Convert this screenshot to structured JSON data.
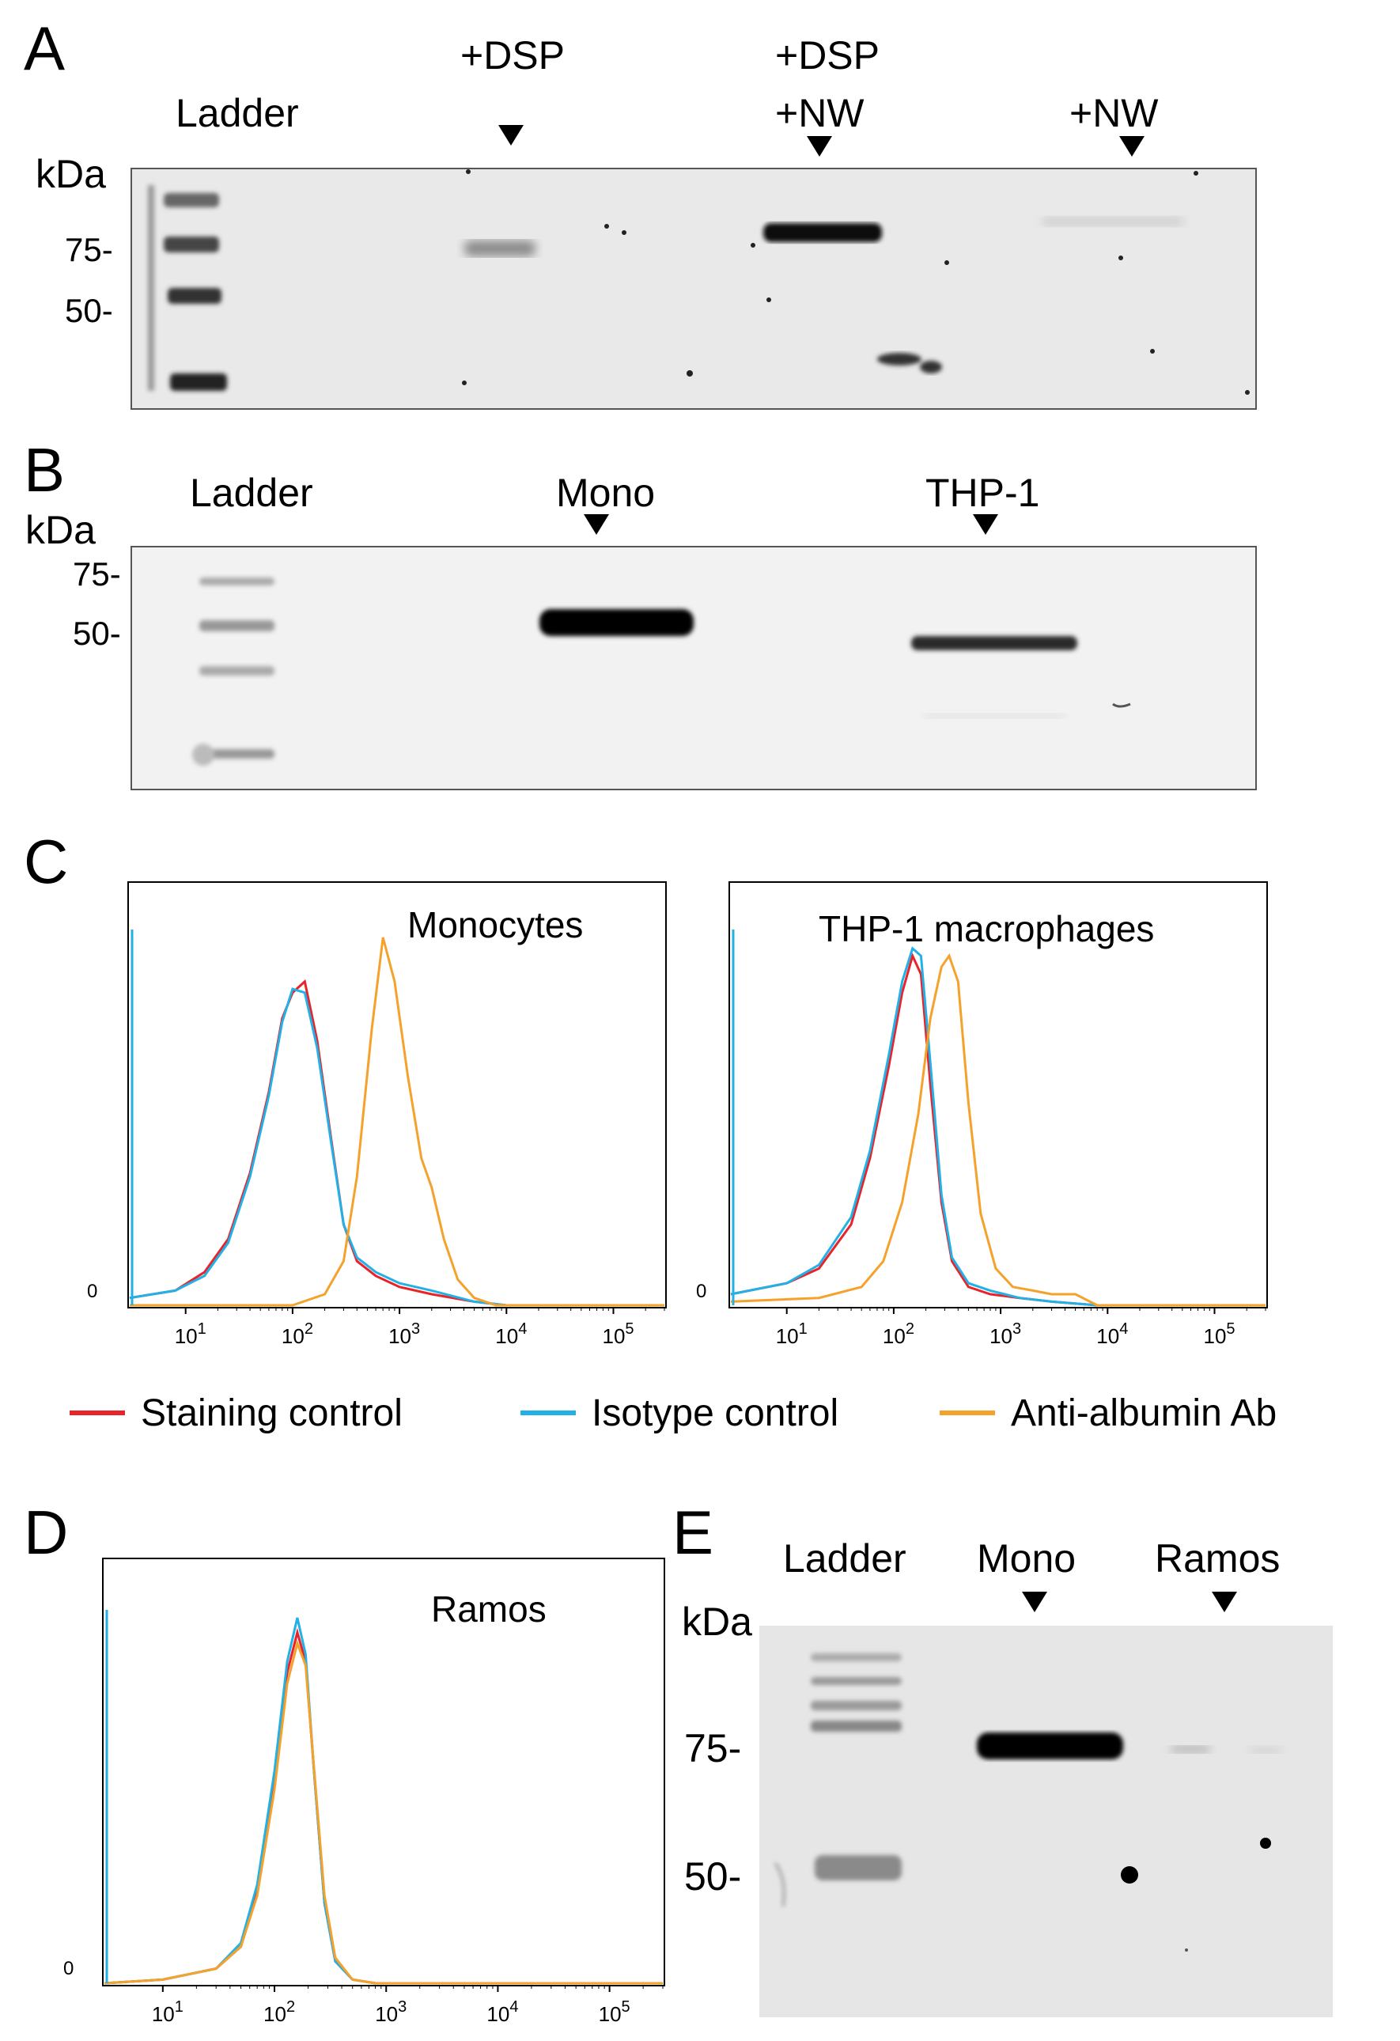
{
  "panelA": {
    "label": "A",
    "unit": "kDa",
    "markers": [
      "75-",
      "50-"
    ],
    "lanes": {
      "ladder": "Ladder",
      "dsp": "+DSP",
      "dsp_nw_1": "+DSP",
      "dsp_nw_2": "+NW",
      "nw": "+NW"
    }
  },
  "panelB": {
    "label": "B",
    "unit": "kDa",
    "markers": [
      "75-",
      "50-"
    ],
    "lanes": {
      "ladder": "Ladder",
      "mono": "Mono",
      "thp1": "THP-1"
    }
  },
  "panelC": {
    "label": "C",
    "plot1_title": "Monocytes",
    "plot2_title": "THP-1 macrophages"
  },
  "legend": {
    "items": [
      {
        "label": "Staining control",
        "color": "#e8232a"
      },
      {
        "label": "Isotype control",
        "color": "#22b1e6"
      },
      {
        "label": "Anti-albumin Ab",
        "color": "#f4a22b"
      }
    ]
  },
  "panelD": {
    "label": "D",
    "plot_title": "Ramos"
  },
  "panelE": {
    "label": "E",
    "unit": "kDa",
    "markers": [
      "75-",
      "50-"
    ],
    "lanes": {
      "ladder": "Ladder",
      "mono": "Mono",
      "ramos": "Ramos"
    }
  },
  "chart_data": [
    {
      "type": "line",
      "title": "Monocytes",
      "xscale": "log",
      "xlim": [
        3,
        300000
      ],
      "xticks": [
        "10^1",
        "10^2",
        "10^3",
        "10^4",
        "10^5"
      ],
      "yticks": [
        "0"
      ],
      "grid": false,
      "series": [
        {
          "name": "Staining control",
          "color": "#e8232a",
          "x": [
            3,
            8,
            15,
            25,
            40,
            60,
            80,
            100,
            130,
            170,
            230,
            300,
            400,
            600,
            1000,
            2000,
            5000,
            10000,
            300000
          ],
          "y": [
            0.02,
            0.04,
            0.09,
            0.18,
            0.36,
            0.58,
            0.78,
            0.85,
            0.88,
            0.72,
            0.45,
            0.22,
            0.12,
            0.08,
            0.05,
            0.03,
            0.01,
            0.0,
            0.0
          ]
        },
        {
          "name": "Isotype control",
          "color": "#22b1e6",
          "x": [
            3,
            8,
            15,
            25,
            40,
            60,
            80,
            100,
            130,
            170,
            230,
            300,
            400,
            600,
            1000,
            2000,
            5000,
            10000,
            300000
          ],
          "y": [
            0.02,
            0.04,
            0.08,
            0.17,
            0.35,
            0.57,
            0.77,
            0.86,
            0.85,
            0.7,
            0.44,
            0.22,
            0.13,
            0.09,
            0.06,
            0.04,
            0.01,
            0.0,
            0.0
          ]
        },
        {
          "name": "Anti-albumin Ab",
          "color": "#f4a22b",
          "x": [
            3,
            100,
            200,
            300,
            400,
            550,
            700,
            900,
            1200,
            1600,
            2000,
            2600,
            3500,
            5000,
            8000,
            300000
          ],
          "y": [
            0.0,
            0.0,
            0.03,
            0.12,
            0.35,
            0.75,
            1.0,
            0.88,
            0.62,
            0.4,
            0.32,
            0.18,
            0.07,
            0.02,
            0.0,
            0.0
          ]
        }
      ]
    },
    {
      "type": "line",
      "title": "THP-1 macrophages",
      "xscale": "log",
      "xlim": [
        3,
        300000
      ],
      "xticks": [
        "10^1",
        "10^2",
        "10^3",
        "10^4",
        "10^5"
      ],
      "yticks": [
        "0"
      ],
      "grid": false,
      "series": [
        {
          "name": "Staining control",
          "color": "#e8232a",
          "x": [
            3,
            10,
            20,
            40,
            60,
            90,
            120,
            150,
            180,
            220,
            280,
            350,
            500,
            800,
            1500,
            3000,
            8000,
            300000
          ],
          "y": [
            0.03,
            0.06,
            0.1,
            0.22,
            0.4,
            0.65,
            0.85,
            0.95,
            0.9,
            0.6,
            0.28,
            0.12,
            0.05,
            0.03,
            0.02,
            0.01,
            0.0,
            0.0
          ]
        },
        {
          "name": "Isotype control",
          "color": "#22b1e6",
          "x": [
            3,
            10,
            20,
            40,
            60,
            90,
            120,
            150,
            180,
            220,
            280,
            350,
            500,
            800,
            1500,
            3000,
            8000,
            300000
          ],
          "y": [
            0.03,
            0.06,
            0.11,
            0.24,
            0.42,
            0.68,
            0.88,
            0.97,
            0.95,
            0.66,
            0.3,
            0.13,
            0.06,
            0.04,
            0.02,
            0.01,
            0.0,
            0.0
          ]
        },
        {
          "name": "Anti-albumin Ab",
          "color": "#f4a22b",
          "x": [
            3,
            20,
            50,
            80,
            120,
            170,
            220,
            280,
            330,
            400,
            500,
            650,
            900,
            1300,
            2000,
            3000,
            5000,
            8000,
            300000
          ],
          "y": [
            0.01,
            0.02,
            0.05,
            0.12,
            0.28,
            0.52,
            0.78,
            0.92,
            0.95,
            0.88,
            0.55,
            0.25,
            0.1,
            0.05,
            0.04,
            0.03,
            0.03,
            0.0,
            0.0
          ]
        }
      ]
    },
    {
      "type": "line",
      "title": "Ramos",
      "xscale": "log",
      "xlim": [
        3,
        300000
      ],
      "xticks": [
        "10^1",
        "10^2",
        "10^3",
        "10^4",
        "10^5"
      ],
      "yticks": [
        "0"
      ],
      "grid": false,
      "series": [
        {
          "name": "Staining control",
          "color": "#e8232a",
          "x": [
            3,
            10,
            30,
            50,
            70,
            100,
            130,
            160,
            190,
            230,
            280,
            350,
            500,
            800,
            300000
          ],
          "y": [
            0.0,
            0.01,
            0.04,
            0.1,
            0.25,
            0.55,
            0.85,
            0.96,
            0.88,
            0.55,
            0.22,
            0.06,
            0.01,
            0.0,
            0.0
          ]
        },
        {
          "name": "Isotype control",
          "color": "#22b1e6",
          "x": [
            3,
            10,
            30,
            50,
            70,
            100,
            130,
            160,
            190,
            230,
            280,
            350,
            500,
            800,
            300000
          ],
          "y": [
            0.0,
            0.01,
            0.04,
            0.11,
            0.27,
            0.58,
            0.88,
            1.0,
            0.9,
            0.55,
            0.22,
            0.06,
            0.01,
            0.0,
            0.0
          ]
        },
        {
          "name": "Anti-albumin Ab",
          "color": "#f4a22b",
          "x": [
            3,
            10,
            30,
            50,
            70,
            100,
            130,
            160,
            190,
            230,
            280,
            350,
            500,
            800,
            300000
          ],
          "y": [
            0.0,
            0.01,
            0.04,
            0.1,
            0.24,
            0.53,
            0.82,
            0.93,
            0.87,
            0.56,
            0.24,
            0.07,
            0.01,
            0.0,
            0.0
          ]
        }
      ]
    }
  ]
}
